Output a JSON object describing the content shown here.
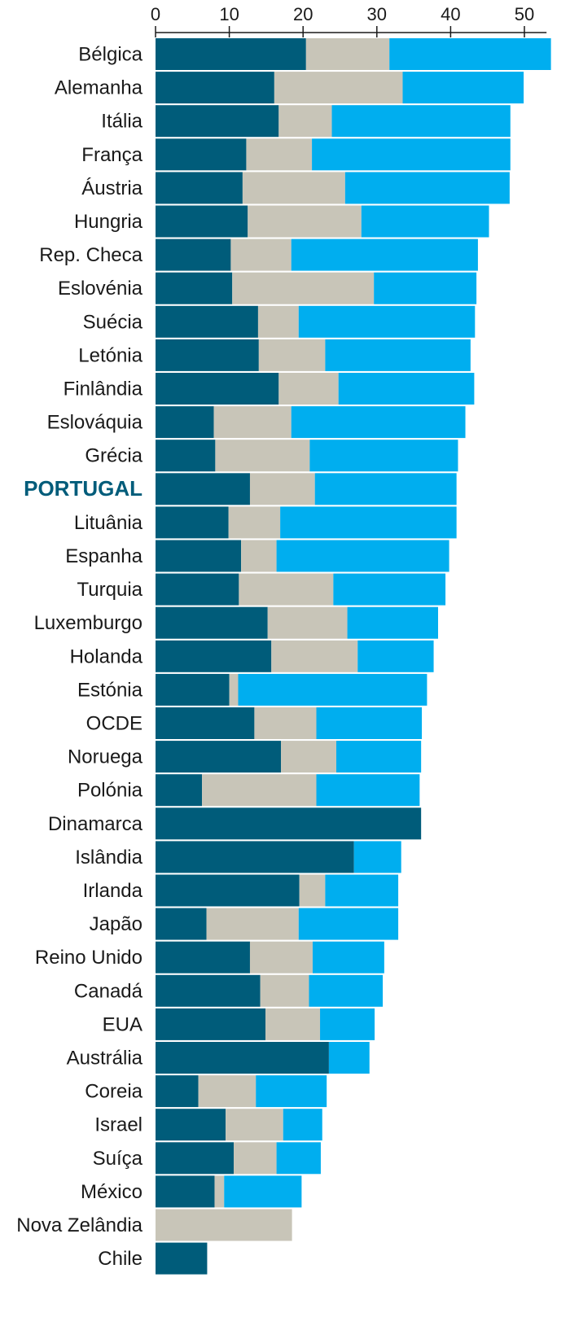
{
  "chart_data": {
    "type": "bar",
    "orientation": "horizontal",
    "stacked": true,
    "title": "",
    "xlabel": "",
    "ylabel": "",
    "xlim": [
      0,
      53
    ],
    "ticks": [
      0,
      10,
      20,
      30,
      40,
      50
    ],
    "grid": false,
    "legend": "none",
    "highlight_category": "PORTUGAL",
    "categories": [
      "Bélgica",
      "Alemanha",
      "Itália",
      "França",
      "Áustria",
      "Hungria",
      "Rep. Checa",
      "Eslovénia",
      "Suécia",
      "Letónia",
      "Finlândia",
      "Eslováquia",
      "Grécia",
      "PORTUGAL",
      "Lituânia",
      "Espanha",
      "Turquia",
      "Luxemburgo",
      "Holanda",
      "Estónia",
      "OCDE",
      "Noruega",
      "Polónia",
      "Dinamarca",
      "Islândia",
      "Irlanda",
      "Japão",
      "Reino Unido",
      "Canadá",
      "EUA",
      "Austrália",
      "Coreia",
      "Israel",
      "Suíça",
      "México",
      "Nova Zelândia",
      "Chile"
    ],
    "series": [
      {
        "color": "#005c7a",
        "values": [
          20.4,
          16.1,
          16.7,
          12.3,
          11.8,
          12.5,
          10.2,
          10.4,
          13.9,
          14.0,
          16.7,
          7.9,
          8.1,
          12.8,
          9.9,
          11.6,
          11.3,
          15.2,
          15.7,
          10.0,
          13.4,
          17.0,
          6.3,
          36.0,
          26.9,
          19.5,
          6.9,
          12.8,
          14.2,
          14.9,
          23.5,
          5.8,
          9.5,
          10.6,
          8.0,
          0.0,
          7.0
        ]
      },
      {
        "color": "#c8c5b8",
        "values": [
          11.3,
          17.4,
          7.2,
          8.9,
          13.9,
          15.4,
          8.2,
          19.2,
          5.5,
          9.0,
          8.1,
          10.5,
          12.8,
          8.8,
          7.0,
          4.8,
          12.8,
          10.8,
          11.7,
          1.2,
          8.4,
          7.5,
          15.5,
          0.0,
          0.0,
          3.5,
          12.5,
          8.5,
          6.6,
          7.4,
          0.0,
          7.8,
          7.8,
          5.8,
          1.3,
          18.5,
          0.0
        ]
      },
      {
        "color": "#00aeef",
        "values": [
          21.9,
          16.4,
          24.2,
          26.9,
          22.3,
          17.3,
          25.3,
          13.9,
          23.9,
          19.7,
          18.4,
          23.6,
          20.1,
          19.2,
          23.9,
          23.4,
          15.2,
          12.3,
          10.3,
          25.6,
          14.3,
          11.5,
          14.0,
          0.0,
          6.4,
          9.9,
          13.5,
          9.7,
          10.0,
          7.4,
          5.5,
          9.6,
          5.3,
          6.0,
          10.5,
          0.0,
          0.0
        ]
      }
    ]
  }
}
